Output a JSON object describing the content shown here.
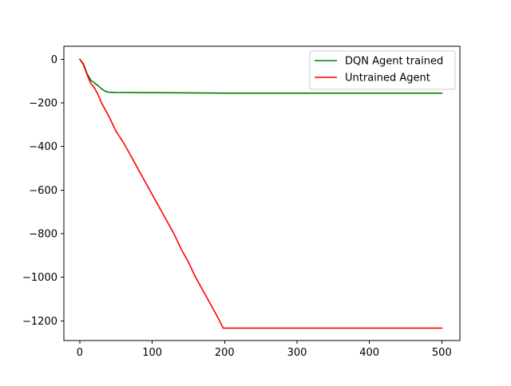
{
  "chart_data": {
    "type": "line",
    "title": "",
    "xlabel": "",
    "ylabel": "",
    "xlim": [
      -22,
      525
    ],
    "ylim": [
      -1290,
      60
    ],
    "x_ticks": [
      0,
      100,
      200,
      300,
      400,
      500
    ],
    "y_ticks": [
      0,
      -200,
      -400,
      -600,
      -800,
      -1000,
      -1200
    ],
    "x_tick_labels": [
      "0",
      "100",
      "200",
      "300",
      "400",
      "500"
    ],
    "y_tick_labels": [
      "0",
      "−200",
      "−400",
      "−600",
      "−800",
      "−1000",
      "−1200"
    ],
    "grid": false,
    "legend": {
      "position": "top-right",
      "entries": [
        "DQN Agent trained",
        "Untrained Agent"
      ]
    },
    "series": [
      {
        "name": "DQN Agent trained",
        "color": "#008000",
        "points": [
          [
            0,
            0
          ],
          [
            5,
            -20
          ],
          [
            10,
            -65
          ],
          [
            15,
            -95
          ],
          [
            20,
            -108
          ],
          [
            25,
            -120
          ],
          [
            30,
            -135
          ],
          [
            35,
            -146
          ],
          [
            40,
            -151
          ],
          [
            50,
            -152
          ],
          [
            100,
            -153
          ],
          [
            200,
            -155
          ],
          [
            300,
            -155
          ],
          [
            400,
            -155
          ],
          [
            500,
            -155
          ]
        ]
      },
      {
        "name": "Untrained Agent",
        "color": "#ff0000",
        "points": [
          [
            0,
            0
          ],
          [
            5,
            -25
          ],
          [
            10,
            -70
          ],
          [
            15,
            -110
          ],
          [
            20,
            -130
          ],
          [
            25,
            -160
          ],
          [
            30,
            -200
          ],
          [
            40,
            -260
          ],
          [
            50,
            -330
          ],
          [
            60,
            -380
          ],
          [
            70,
            -440
          ],
          [
            80,
            -500
          ],
          [
            90,
            -560
          ],
          [
            100,
            -620
          ],
          [
            110,
            -680
          ],
          [
            120,
            -740
          ],
          [
            130,
            -800
          ],
          [
            140,
            -870
          ],
          [
            150,
            -930
          ],
          [
            160,
            -1000
          ],
          [
            170,
            -1060
          ],
          [
            180,
            -1120
          ],
          [
            190,
            -1180
          ],
          [
            198,
            -1233
          ],
          [
            250,
            -1233
          ],
          [
            300,
            -1233
          ],
          [
            400,
            -1233
          ],
          [
            500,
            -1233
          ]
        ]
      }
    ]
  }
}
